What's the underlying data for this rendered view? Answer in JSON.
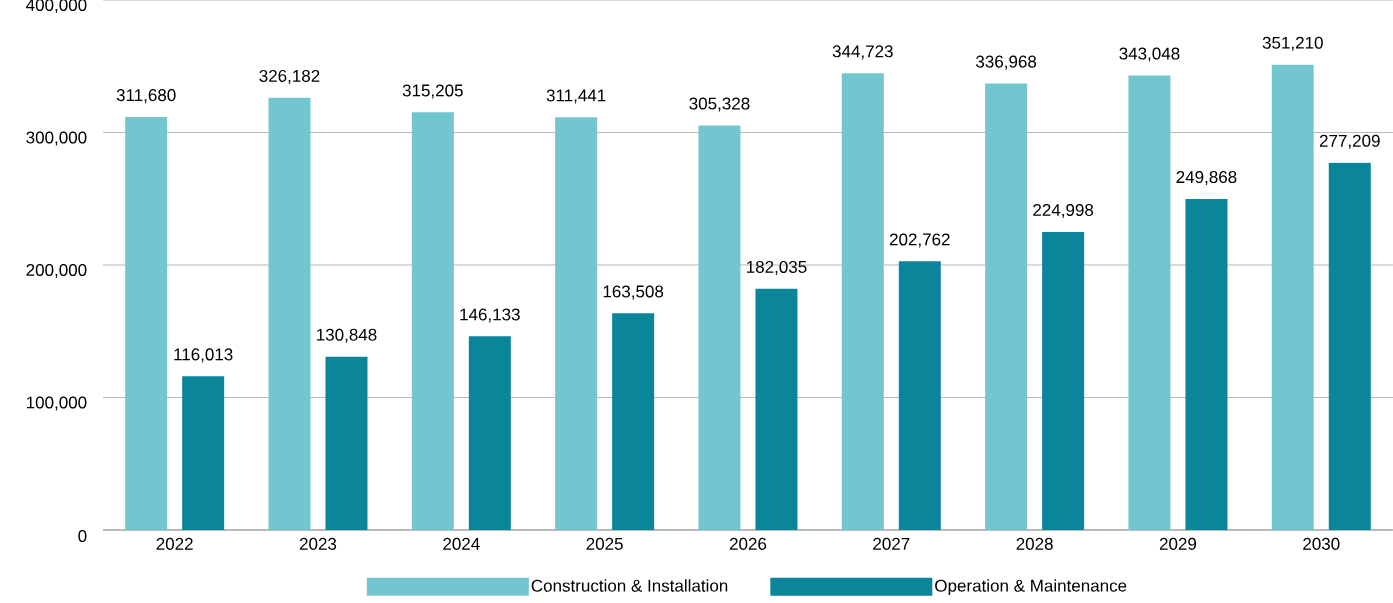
{
  "chart_data": {
    "type": "bar",
    "categories": [
      "2022",
      "2023",
      "2024",
      "2025",
      "2026",
      "2027",
      "2028",
      "2029",
      "2030"
    ],
    "series": [
      {
        "name": "Construction & Installation",
        "color": "#72c6cf",
        "values": [
          311680,
          326182,
          315205,
          311441,
          305328,
          344723,
          336968,
          343048,
          351210
        ],
        "value_labels": [
          "311,680",
          "326,182",
          "315,205",
          "311,441",
          "305,328",
          "344,723",
          "336,968",
          "343,048",
          "351,210"
        ]
      },
      {
        "name": "Operation & Maintenance",
        "color": "#0a859a",
        "values": [
          116013,
          130848,
          146133,
          163508,
          182035,
          202762,
          224998,
          249868,
          277209
        ],
        "value_labels": [
          "116,013",
          "130,848",
          "146,133",
          "163,508",
          "182,035",
          "202,762",
          "224,998",
          "249,868",
          "277,209"
        ]
      }
    ],
    "ylim": [
      0,
      400000
    ],
    "yticks": [
      {
        "value": 0,
        "label": "0"
      },
      {
        "value": 100000,
        "label": "100,000"
      },
      {
        "value": 200000,
        "label": "200,000"
      },
      {
        "value": 300000,
        "label": "300,000"
      },
      {
        "value": 400000,
        "label": "400,000"
      }
    ],
    "grid": "y",
    "legend": "bottom"
  }
}
